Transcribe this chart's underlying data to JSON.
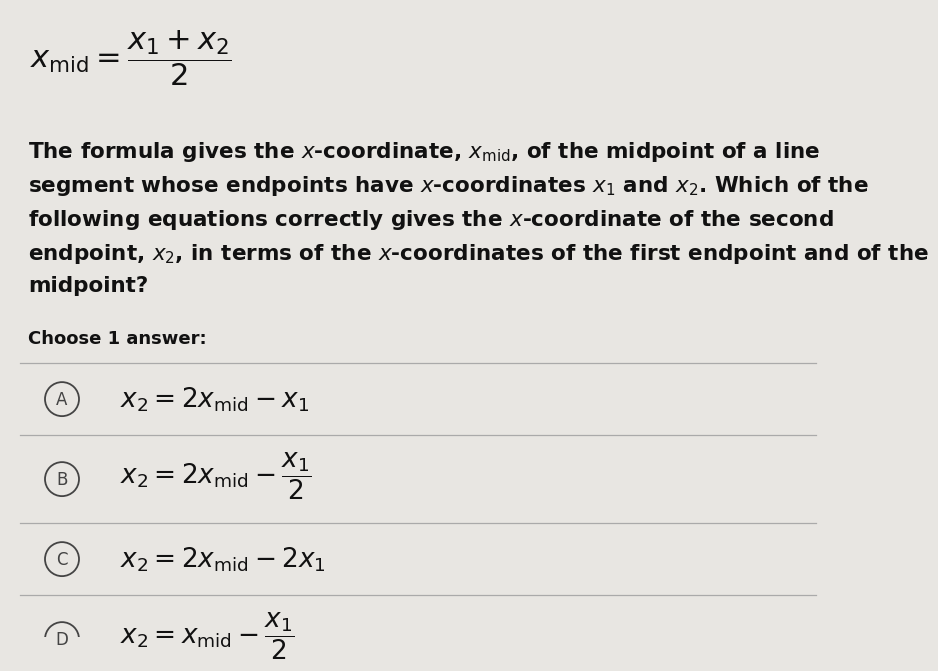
{
  "background_color": "#e8e6e2",
  "text_color": "#111111",
  "line_color": "#aaaaaa",
  "circle_edge_color": "#444444",
  "top_formula": "$x_\\mathrm{mid} = \\dfrac{x_1 + x_2}{2}$",
  "desc_lines": [
    "The formula gives the $x$-coordinate, $x_\\mathrm{mid}$, of the midpoint of a line",
    "segment whose endpoints have $x$-coordinates $x_1$ and $x_2$. Which of the",
    "following equations correctly gives the $x$-coordinate of the second",
    "endpoint, $x_2$, in terms of the $x$-coordinates of the first endpoint and of the",
    "midpoint?"
  ],
  "choose_text": "Choose 1 answer:",
  "options": [
    {
      "label": "A",
      "tex": "$x_2 = 2x_\\mathrm{mid} - x_1$",
      "tall": false
    },
    {
      "label": "B",
      "tex": "$x_2 = 2x_\\mathrm{mid} - \\dfrac{x_1}{2}$",
      "tall": true
    },
    {
      "label": "C",
      "tex": "$x_2 = 2x_\\mathrm{mid} - 2x_1$",
      "tall": false
    },
    {
      "label": "D",
      "tex": "$x_2 = x_\\mathrm{mid} - \\dfrac{x_1}{2}$",
      "tall": true
    }
  ]
}
